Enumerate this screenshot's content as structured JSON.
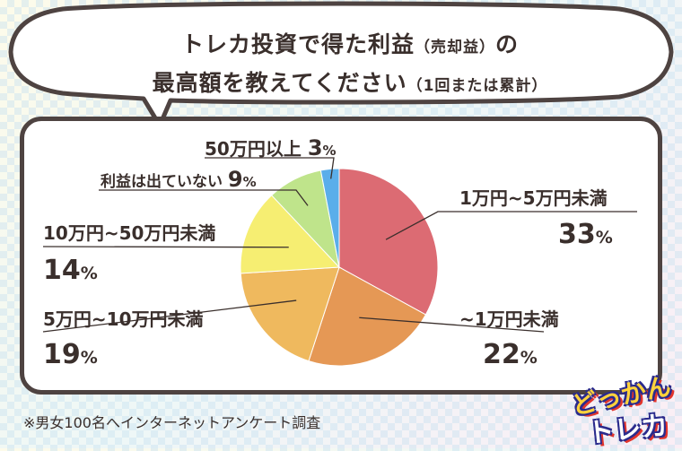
{
  "title": {
    "line1_main": "トレカ投資で得た利益",
    "line1_paren": "（売却益）",
    "line1_end": "の",
    "line2_main": "最高額を教えてください",
    "line2_paren": "（1回または累計）"
  },
  "chart_data": {
    "type": "pie",
    "title": "トレカ投資で得た利益（売却益）の最高額を教えてください（1回または累計）",
    "unit": "%",
    "slices": [
      {
        "label": "1万円~5万円未満",
        "value": 33,
        "color": "#dc6b73"
      },
      {
        "label": "~1万円未満",
        "value": 22,
        "color": "#e59855"
      },
      {
        "label": "5万円~10万円未満",
        "value": 19,
        "color": "#efb95e"
      },
      {
        "label": "10万円~50万円未満",
        "value": 14,
        "color": "#f6ee72"
      },
      {
        "label": "利益は出ていない",
        "value": 9,
        "color": "#bfe48b"
      },
      {
        "label": "50万円以上",
        "value": 3,
        "color": "#5aaeea"
      }
    ]
  },
  "footnote": "※男女100名へインターネットアンケート調査",
  "logo": {
    "line1": "どっかん",
    "line2": "トレカ"
  }
}
